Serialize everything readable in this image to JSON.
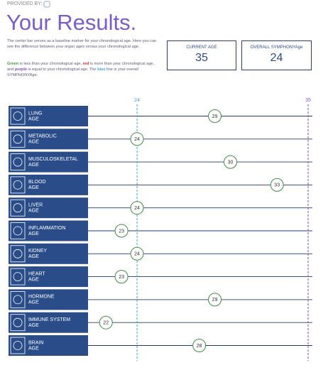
{
  "header": {
    "provided_by": "PROVIDED BY:",
    "title": "Your Results."
  },
  "description": "The center bar serves as a baseline marker for your chronological age. Here you can see the difference between your organ ages versus your chronological age.",
  "legend_text": [
    {
      "text": "Green",
      "color": "#3a9a3a"
    },
    {
      "text": " is less than your chronological age, "
    },
    {
      "text": "red",
      "color": "#d0302a"
    },
    {
      "text": " is more than your chronological age, and "
    },
    {
      "text": "purple",
      "color": "#7a4fc0"
    },
    {
      "text": " is equal to your chronological age. The "
    },
    {
      "text": "blue",
      "color": "#3aa8cf"
    },
    {
      "text": " line is your overall SYMPHONYAge."
    }
  ],
  "cards": [
    {
      "label": "CURRENT AGE",
      "value": 35
    },
    {
      "label": "OVERALL SYMPHONYAge",
      "value": 24
    }
  ],
  "chart_data": {
    "type": "dot",
    "categories": [
      [
        "LUNG",
        "AGE"
      ],
      [
        "METABOLIC",
        "AGE"
      ],
      [
        "MUSCULOSKELETAL",
        "AGE"
      ],
      [
        "BLOOD",
        "AGE"
      ],
      [
        "LIVER",
        "AGE"
      ],
      [
        "INFLAMMATION",
        "AGE"
      ],
      [
        "KIDNEY",
        "AGE"
      ],
      [
        "HEART",
        "AGE"
      ],
      [
        "HORMONE",
        "AGE"
      ],
      [
        "IMMUNE SYSTEM",
        "AGE"
      ],
      [
        "BRAIN",
        "AGE"
      ]
    ],
    "values": [
      29,
      24,
      30,
      33,
      24,
      23,
      24,
      23,
      29,
      22,
      28
    ],
    "xlim": [
      21,
      35.3
    ],
    "reference_lines": [
      {
        "value": 24,
        "color": "#3aa8cf"
      },
      {
        "value": 35,
        "color": "#7a4fc0"
      }
    ],
    "bar_color": "#2a4d8a",
    "line_color": "#1f3d74",
    "marker_color": "#3d8f3d"
  }
}
